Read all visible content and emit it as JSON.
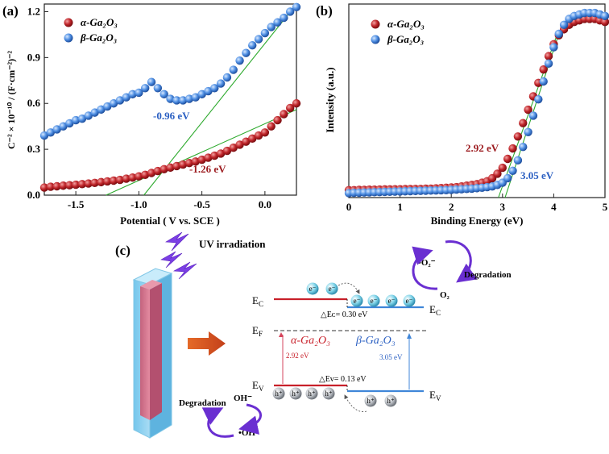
{
  "panel_a": {
    "label": "(a)",
    "xlabel": "Potential ( V vs. SCE )",
    "ylabel": "C⁻² × 10⁻¹⁰ / (F·cm⁻²)⁻²",
    "legend": [
      "α-Ga₂O₃",
      "β-Ga₂O₃"
    ],
    "annotations": [
      "-0.96 eV",
      "-1.26 eV"
    ]
  },
  "panel_b": {
    "label": "(b)",
    "xlabel": "Binding Energy (eV)",
    "ylabel": "Intensity (a.u.)",
    "legend": [
      "α-Ga₂O₃",
      "β-Ga₂O₃"
    ],
    "annotations": [
      "2.92 eV",
      "3.05 eV"
    ]
  },
  "panel_c": {
    "label": "(c)",
    "uv_label": "UV irradiation",
    "degradation_top": "Degradation",
    "degradation_bottom": "Degradation",
    "o2_radical": "•O₂⁻",
    "o2": "O₂",
    "oh_minus": "OH⁻",
    "oh_radical": "•OH",
    "ec_left": "E",
    "ec_left_sub": "C",
    "ec_right": "E",
    "ec_right_sub": "C",
    "ef": "E",
    "ef_sub": "F",
    "ev_left": "E",
    "ev_left_sub": "V",
    "ev_right": "E",
    "ev_right_sub": "V",
    "delta_ec": "△Eᴄ= 0.30 eV",
    "delta_ev": "△Eᴠ= 0.13 eV",
    "alpha_name": "α-Ga₂O₃",
    "beta_name": "β-Ga₂O₃",
    "alpha_gap": "2.92 eV",
    "beta_gap": "3.05 eV",
    "electron": "e⁻",
    "hole": "h⁺"
  },
  "chart_data": [
    {
      "type": "scatter",
      "title": "",
      "xlabel": "Potential ( V vs. SCE )",
      "ylabel": "C⁻² × 10⁻¹⁰ / (F·cm⁻²)⁻²",
      "xlim": [
        -1.75,
        0.25
      ],
      "ylim": [
        0,
        1.25
      ],
      "xticks": [
        -1.5,
        -1.0,
        -0.5,
        0.0
      ],
      "xtick_labels": [
        "-1.5",
        "-1.0",
        "-0.5",
        "0.0"
      ],
      "yticks": [
        0,
        0.3,
        0.6,
        0.9,
        1.2
      ],
      "ytick_labels": [
        "0.0",
        "0.3",
        "0.6",
        "0.9",
        "1.2"
      ],
      "legend_position": "top-left",
      "series": [
        {
          "name": "α-Ga₂O₃",
          "color": "#b5181e",
          "x": [
            -1.75,
            -1.7,
            -1.65,
            -1.6,
            -1.55,
            -1.5,
            -1.45,
            -1.4,
            -1.35,
            -1.3,
            -1.25,
            -1.2,
            -1.15,
            -1.1,
            -1.05,
            -1.0,
            -0.95,
            -0.9,
            -0.85,
            -0.8,
            -0.75,
            -0.7,
            -0.65,
            -0.6,
            -0.55,
            -0.5,
            -0.45,
            -0.4,
            -0.35,
            -0.3,
            -0.25,
            -0.2,
            -0.15,
            -0.1,
            -0.05,
            0.0,
            0.05,
            0.1,
            0.15,
            0.2,
            0.25
          ],
          "y": [
            0.05,
            0.055,
            0.058,
            0.062,
            0.065,
            0.068,
            0.072,
            0.076,
            0.08,
            0.085,
            0.09,
            0.095,
            0.1,
            0.108,
            0.115,
            0.123,
            0.133,
            0.145,
            0.158,
            0.17,
            0.18,
            0.19,
            0.2,
            0.21,
            0.22,
            0.232,
            0.245,
            0.258,
            0.272,
            0.29,
            0.31,
            0.33,
            0.35,
            0.37,
            0.39,
            0.41,
            0.45,
            0.49,
            0.53,
            0.57,
            0.6
          ]
        },
        {
          "name": "β-Ga₂O₃",
          "color": "#3d7fd6",
          "x": [
            -1.75,
            -1.7,
            -1.65,
            -1.6,
            -1.55,
            -1.5,
            -1.45,
            -1.4,
            -1.35,
            -1.3,
            -1.25,
            -1.2,
            -1.15,
            -1.1,
            -1.05,
            -1.0,
            -0.95,
            -0.9,
            -0.85,
            -0.8,
            -0.75,
            -0.7,
            -0.65,
            -0.6,
            -0.55,
            -0.5,
            -0.45,
            -0.4,
            -0.35,
            -0.3,
            -0.25,
            -0.2,
            -0.15,
            -0.1,
            -0.05,
            0.0,
            0.05,
            0.1,
            0.15,
            0.2,
            0.25
          ],
          "y": [
            0.39,
            0.41,
            0.43,
            0.45,
            0.47,
            0.49,
            0.5,
            0.52,
            0.54,
            0.56,
            0.58,
            0.6,
            0.62,
            0.64,
            0.66,
            0.67,
            0.7,
            0.74,
            0.7,
            0.66,
            0.63,
            0.62,
            0.62,
            0.63,
            0.64,
            0.66,
            0.68,
            0.7,
            0.73,
            0.77,
            0.82,
            0.88,
            0.93,
            0.98,
            1.02,
            1.06,
            1.1,
            1.13,
            1.16,
            1.2,
            1.23
          ]
        }
      ],
      "fit_lines": [
        {
          "series": "β-Ga₂O₃",
          "x": [
            -0.96,
            0.25
          ],
          "y": [
            0,
            1.25
          ]
        },
        {
          "series": "α-Ga₂O₃",
          "x": [
            -1.26,
            0.25
          ],
          "y": [
            0,
            0.56
          ]
        }
      ]
    },
    {
      "type": "scatter",
      "title": "",
      "xlabel": "Binding Energy (eV)",
      "ylabel": "Intensity (a.u.)",
      "xlim": [
        0,
        5
      ],
      "ylim": [
        0,
        1.3
      ],
      "xticks": [
        0,
        1,
        2,
        3,
        4,
        5
      ],
      "xtick_labels": [
        "0",
        "1",
        "2",
        "3",
        "4",
        "5"
      ],
      "yticks": [],
      "legend_position": "top-left",
      "series": [
        {
          "name": "α-Ga₂O₃",
          "color": "#b5181e",
          "x": [
            0.0,
            0.1,
            0.2,
            0.3,
            0.4,
            0.5,
            0.6,
            0.7,
            0.8,
            0.9,
            1.0,
            1.1,
            1.2,
            1.3,
            1.4,
            1.5,
            1.6,
            1.7,
            1.8,
            1.9,
            2.0,
            2.1,
            2.2,
            2.3,
            2.4,
            2.5,
            2.6,
            2.7,
            2.8,
            2.9,
            3.0,
            3.1,
            3.2,
            3.3,
            3.4,
            3.5,
            3.6,
            3.7,
            3.8,
            3.9,
            4.0,
            4.1,
            4.2,
            4.3,
            4.4,
            4.5,
            4.6,
            4.7,
            4.8,
            4.9,
            5.0
          ],
          "y": [
            0.05,
            0.05,
            0.052,
            0.052,
            0.053,
            0.053,
            0.054,
            0.055,
            0.055,
            0.056,
            0.056,
            0.057,
            0.057,
            0.058,
            0.058,
            0.06,
            0.06,
            0.062,
            0.064,
            0.066,
            0.068,
            0.07,
            0.075,
            0.08,
            0.085,
            0.09,
            0.1,
            0.11,
            0.13,
            0.16,
            0.2,
            0.26,
            0.33,
            0.41,
            0.5,
            0.59,
            0.68,
            0.77,
            0.86,
            0.95,
            1.03,
            1.09,
            1.13,
            1.16,
            1.18,
            1.19,
            1.2,
            1.2,
            1.2,
            1.19,
            1.18
          ]
        },
        {
          "name": "β-Ga₂O₃",
          "color": "#3d7fd6",
          "x": [
            0.0,
            0.1,
            0.2,
            0.3,
            0.4,
            0.5,
            0.6,
            0.7,
            0.8,
            0.9,
            1.0,
            1.1,
            1.2,
            1.3,
            1.4,
            1.5,
            1.6,
            1.7,
            1.8,
            1.9,
            2.0,
            2.1,
            2.2,
            2.3,
            2.4,
            2.5,
            2.6,
            2.7,
            2.8,
            2.9,
            3.0,
            3.1,
            3.2,
            3.3,
            3.4,
            3.5,
            3.6,
            3.7,
            3.8,
            3.9,
            4.0,
            4.1,
            4.2,
            4.3,
            4.4,
            4.5,
            4.6,
            4.7,
            4.8,
            4.9,
            5.0
          ],
          "y": [
            0.03,
            0.032,
            0.033,
            0.034,
            0.035,
            0.036,
            0.037,
            0.038,
            0.039,
            0.04,
            0.041,
            0.042,
            0.043,
            0.044,
            0.045,
            0.046,
            0.047,
            0.048,
            0.049,
            0.05,
            0.052,
            0.054,
            0.056,
            0.058,
            0.06,
            0.063,
            0.066,
            0.07,
            0.075,
            0.085,
            0.1,
            0.13,
            0.18,
            0.25,
            0.34,
            0.44,
            0.55,
            0.66,
            0.78,
            0.9,
            1.01,
            1.1,
            1.16,
            1.2,
            1.22,
            1.23,
            1.24,
            1.24,
            1.24,
            1.23,
            1.22
          ]
        }
      ],
      "fit_lines": [
        {
          "series": "α-Ga₂O₃",
          "x": [
            2.92,
            4.05
          ],
          "y": [
            0,
            1.08
          ]
        },
        {
          "series": "β-Ga₂O₃",
          "x": [
            3.05,
            4.1
          ],
          "y": [
            0,
            1.1
          ]
        }
      ]
    }
  ]
}
